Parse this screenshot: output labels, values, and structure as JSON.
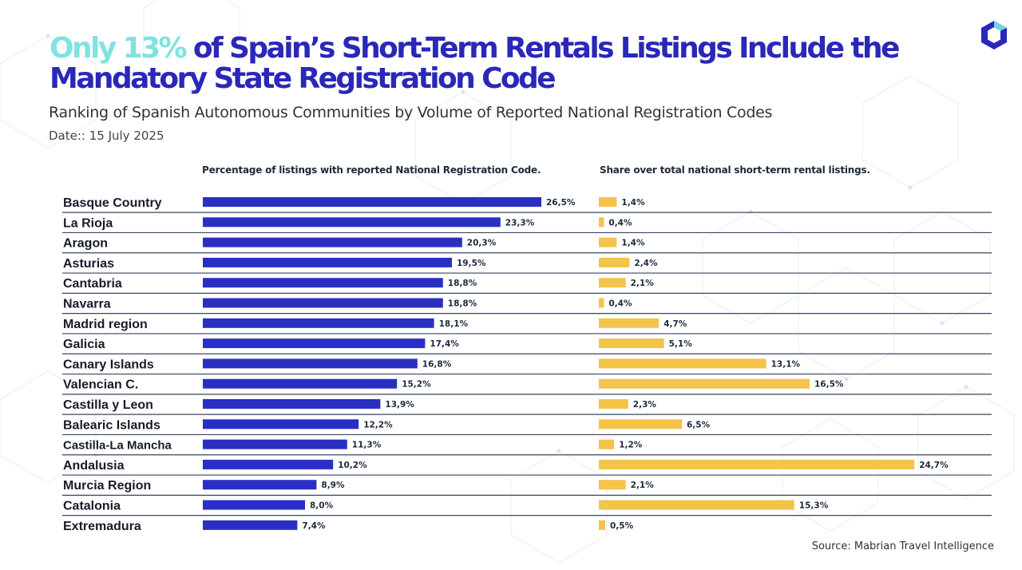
{
  "header": {
    "title_highlight": "Only 13%",
    "title_rest": " of Spain’s Short-Term Rentals Listings Include the Mandatory State Registration Code",
    "subtitle": "Ranking of Spanish Autonomous Communities by Volume of Reported National Registration Codes",
    "date": "Date:: 15 July 2025"
  },
  "footer": {
    "source": "Source: Mabrian Travel Intelligence"
  },
  "logo": {
    "icon": "hexagon-logo-icon",
    "color": "#2a28b8"
  },
  "colors": {
    "primary_bar": "#2a2fc4",
    "secondary_bar": "#f3c34a",
    "title": "#2a28b8",
    "highlight": "#7fe3e0",
    "separator": "#3a4560"
  },
  "chart_data": {
    "type": "bar",
    "orientation": "horizontal",
    "categories": [
      "Basque Country",
      "La Rioja",
      "Aragon",
      "Asturias",
      "Cantabria",
      "Navarra",
      "Madrid region",
      "Galicia",
      "Canary Islands",
      "Valencian C.",
      "Castilla y Leon",
      "Balearic Islands",
      "Castilla-La Mancha",
      "Andalusia",
      "Murcia Region",
      "Catalonia",
      "Extremadura"
    ],
    "series": [
      {
        "name": "Percentage of listings with reported National Registration Code.",
        "values": [
          26.5,
          23.3,
          20.3,
          19.5,
          18.8,
          18.8,
          18.1,
          17.4,
          16.8,
          15.2,
          13.9,
          12.2,
          11.3,
          10.2,
          8.9,
          8.0,
          7.4
        ],
        "labels": [
          "26,5%",
          "23,3%",
          "20,3%",
          "19,5%",
          "18,8%",
          "18,8%",
          "18,1%",
          "17,4%",
          "16,8%",
          "15,2%",
          "13,9%",
          "12,2%",
          "11,3%",
          "10,2%",
          "8,9%",
          "8,0%",
          "7,4%"
        ],
        "color": "#2a2fc4"
      },
      {
        "name": "Share over total national short-term rental listings.",
        "values": [
          1.4,
          0.4,
          1.4,
          2.4,
          2.1,
          0.4,
          4.7,
          5.1,
          13.1,
          16.5,
          2.3,
          6.5,
          1.2,
          24.7,
          2.1,
          15.3,
          0.5
        ],
        "labels": [
          "1,4%",
          "0,4%",
          "1,4%",
          "2,4%",
          "2,1%",
          "0,4%",
          "4,7%",
          "5,1%",
          "13,1%",
          "16,5%",
          "2,3%",
          "6,5%",
          "1,2%",
          "24,7%",
          "2,1%",
          "15,3%",
          "0,5%"
        ],
        "color": "#f3c34a"
      }
    ],
    "grid": false,
    "legend": "none"
  }
}
